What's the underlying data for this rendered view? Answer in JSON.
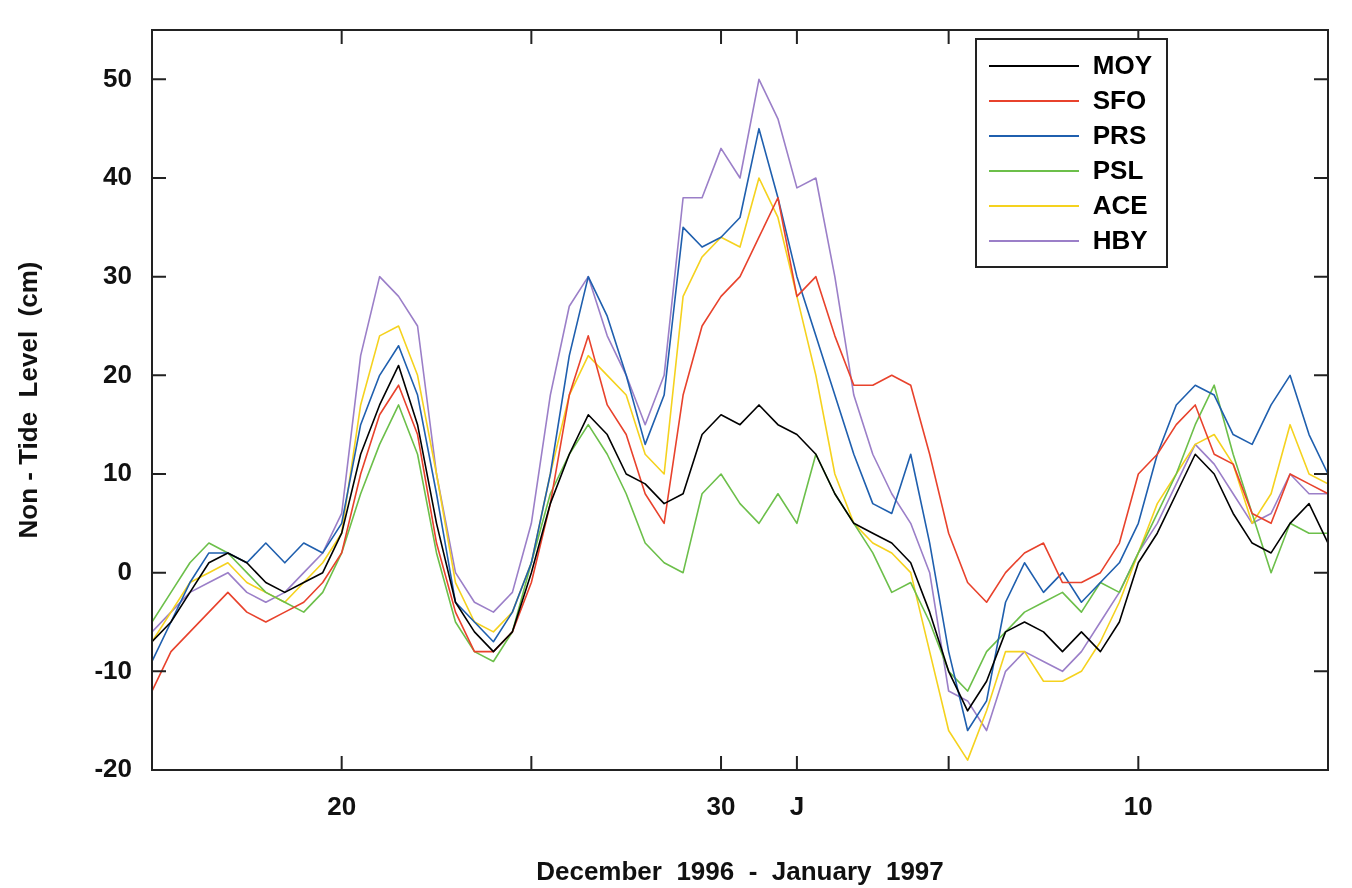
{
  "chart_data": {
    "type": "line",
    "xlabel": "December  1996  -  January  1997",
    "ylabel": "Non - Tide  Level  (cm)",
    "x": [
      "1996-12-15",
      "1996-12-15T12:00",
      "1996-12-16",
      "1996-12-16T12:00",
      "1996-12-17",
      "1996-12-17T12:00",
      "1996-12-18",
      "1996-12-18T12:00",
      "1996-12-19",
      "1996-12-19T12:00",
      "1996-12-20",
      "1996-12-20T12:00",
      "1996-12-21",
      "1996-12-21T12:00",
      "1996-12-22",
      "1996-12-22T12:00",
      "1996-12-23",
      "1996-12-23T12:00",
      "1996-12-24",
      "1996-12-24T12:00",
      "1996-12-25",
      "1996-12-25T12:00",
      "1996-12-26",
      "1996-12-26T12:00",
      "1996-12-27",
      "1996-12-27T12:00",
      "1996-12-28",
      "1996-12-28T12:00",
      "1996-12-29",
      "1996-12-29T12:00",
      "1996-12-30",
      "1996-12-30T12:00",
      "1996-12-31",
      "1996-12-31T12:00",
      "1997-01-01",
      "1997-01-01T12:00",
      "1997-01-02",
      "1997-01-02T12:00",
      "1997-01-03",
      "1997-01-03T12:00",
      "1997-01-04",
      "1997-01-04T12:00",
      "1997-01-05",
      "1997-01-05T12:00",
      "1997-01-06",
      "1997-01-06T12:00",
      "1997-01-07",
      "1997-01-07T12:00",
      "1997-01-08",
      "1997-01-08T12:00",
      "1997-01-09",
      "1997-01-09T12:00",
      "1997-01-10",
      "1997-01-10T12:00",
      "1997-01-11",
      "1997-01-11T12:00",
      "1997-01-12",
      "1997-01-12T12:00",
      "1997-01-13",
      "1997-01-13T12:00",
      "1997-01-14",
      "1997-01-14T12:00",
      "1997-01-15"
    ],
    "series": [
      {
        "name": "MOY",
        "color": "#000000",
        "values": [
          -7,
          -5,
          -2,
          1,
          2,
          1,
          -1,
          -2,
          -1,
          0,
          4,
          12,
          17,
          21,
          15,
          5,
          -3,
          -6,
          -8,
          -6,
          0,
          7,
          12,
          16,
          14,
          10,
          9,
          7,
          8,
          14,
          16,
          15,
          17,
          15,
          14,
          12,
          8,
          5,
          4,
          3,
          1,
          -4,
          -10,
          -14,
          -11,
          -6,
          -5,
          -6,
          -8,
          -6,
          -8,
          -5,
          1,
          4,
          8,
          12,
          10,
          6,
          3,
          2,
          5,
          7,
          3
        ]
      },
      {
        "name": "SFO",
        "color": "#e8422c",
        "values": [
          -12,
          -8,
          -6,
          -4,
          -2,
          -4,
          -5,
          -4,
          -3,
          -1,
          2,
          10,
          16,
          19,
          14,
          3,
          -4,
          -8,
          -8,
          -6,
          -1,
          7,
          18,
          24,
          17,
          14,
          8,
          5,
          18,
          25,
          28,
          30,
          34,
          38,
          28,
          30,
          24,
          19,
          19,
          20,
          19,
          12,
          4,
          -1,
          -3,
          0,
          2,
          3,
          -1,
          -1,
          0,
          3,
          10,
          12,
          15,
          17,
          12,
          11,
          6,
          5,
          10,
          9,
          8
        ]
      },
      {
        "name": "PRS",
        "color": "#1f5fae",
        "values": [
          -9,
          -5,
          -1,
          2,
          2,
          1,
          3,
          1,
          3,
          2,
          5,
          15,
          20,
          23,
          18,
          8,
          -3,
          -5,
          -7,
          -4,
          1,
          10,
          22,
          30,
          26,
          20,
          13,
          18,
          35,
          33,
          34,
          36,
          45,
          38,
          30,
          24,
          18,
          12,
          7,
          6,
          12,
          3,
          -8,
          -16,
          -13,
          -3,
          1,
          -2,
          0,
          -3,
          -1,
          1,
          5,
          12,
          17,
          19,
          18,
          14,
          13,
          17,
          20,
          14,
          10
        ]
      },
      {
        "name": "PSL",
        "color": "#6cbf4a",
        "values": [
          -5,
          -2,
          1,
          3,
          2,
          0,
          -2,
          -3,
          -4,
          -2,
          2,
          8,
          13,
          17,
          12,
          2,
          -5,
          -8,
          -9,
          -6,
          1,
          8,
          12,
          15,
          12,
          8,
          3,
          1,
          0,
          8,
          10,
          7,
          5,
          8,
          5,
          12,
          8,
          5,
          2,
          -2,
          -1,
          -5,
          -10,
          -12,
          -8,
          -6,
          -4,
          -3,
          -2,
          -4,
          -1,
          -2,
          2,
          6,
          10,
          15,
          19,
          12,
          6,
          0,
          5,
          4,
          4
        ]
      },
      {
        "name": "ACE",
        "color": "#f5d21e",
        "values": [
          -7,
          -4,
          -1,
          0,
          1,
          -1,
          -2,
          -3,
          -1,
          1,
          4,
          17,
          24,
          25,
          20,
          10,
          -1,
          -5,
          -6,
          -4,
          1,
          10,
          18,
          22,
          20,
          18,
          12,
          10,
          28,
          32,
          34,
          33,
          40,
          36,
          28,
          20,
          10,
          5,
          3,
          2,
          0,
          -8,
          -16,
          -19,
          -14,
          -8,
          -8,
          -11,
          -11,
          -10,
          -7,
          -3,
          2,
          7,
          10,
          13,
          14,
          11,
          5,
          8,
          15,
          10,
          9
        ]
      },
      {
        "name": "HBY",
        "color": "#9b7fc8",
        "values": [
          -6,
          -4,
          -2,
          -1,
          0,
          -2,
          -3,
          -2,
          0,
          2,
          6,
          22,
          30,
          28,
          25,
          10,
          0,
          -3,
          -4,
          -2,
          5,
          18,
          27,
          30,
          24,
          20,
          15,
          20,
          38,
          38,
          43,
          40,
          50,
          46,
          39,
          40,
          30,
          18,
          12,
          8,
          5,
          0,
          -12,
          -13,
          -16,
          -10,
          -8,
          -9,
          -10,
          -8,
          -5,
          -2,
          2,
          5,
          9,
          13,
          11,
          8,
          5,
          6,
          10,
          8,
          8
        ]
      }
    ],
    "xlim": [
      "1996-12-15",
      "1997-01-15"
    ],
    "xticks": [
      {
        "value": "1996-12-15",
        "label": null
      },
      {
        "value": "1996-12-20",
        "label": "20"
      },
      {
        "value": "1996-12-25",
        "label": null
      },
      {
        "value": "1996-12-30",
        "label": "30"
      },
      {
        "value": "1997-01-01",
        "label": "J"
      },
      {
        "value": "1997-01-05",
        "label": null
      },
      {
        "value": "1997-01-10",
        "label": "10"
      },
      {
        "value": "1997-01-15",
        "label": null
      }
    ],
    "ylim": [
      -20,
      55
    ],
    "yticks": [
      -20,
      -10,
      0,
      10,
      20,
      30,
      40,
      50
    ],
    "legend": "top right",
    "marker": "none",
    "line_style": "solid",
    "grid": false
  }
}
